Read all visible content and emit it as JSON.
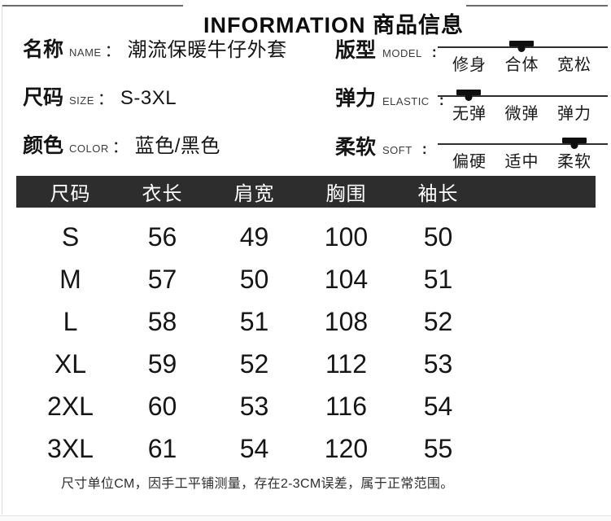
{
  "header": {
    "title": "INFORMATION 商品信息"
  },
  "punctuation": {
    "attr_colon": "：",
    "slider_colon": ":"
  },
  "attributes": [
    {
      "label_zh": "名称",
      "label_en": "NAME",
      "value": "潮流保暖牛仔外套"
    },
    {
      "label_zh": "尺码",
      "label_en": "SIZE",
      "value": "S-3XL"
    },
    {
      "label_zh": "颜色",
      "label_en": "COLOR",
      "value": "蓝色/黑色"
    }
  ],
  "sliders": [
    {
      "label_zh": "版型",
      "label_en": "MODEL",
      "options": [
        "修身",
        "合体",
        "宽松"
      ],
      "selected_index": 1
    },
    {
      "label_zh": "弹力",
      "label_en": "ELASTIC",
      "options": [
        "无弹",
        "微弹",
        "弹力"
      ],
      "selected_index": 0
    },
    {
      "label_zh": "柔软",
      "label_en": "SOFT",
      "options": [
        "偏硬",
        "适中",
        "柔软"
      ],
      "selected_index": 2
    }
  ],
  "size_table": {
    "headers": [
      "尺码",
      "衣长",
      "肩宽",
      "胸围",
      "袖长"
    ],
    "rows": [
      [
        "S",
        "56",
        "49",
        "100",
        "50"
      ],
      [
        "M",
        "57",
        "50",
        "104",
        "51"
      ],
      [
        "L",
        "58",
        "51",
        "108",
        "52"
      ],
      [
        "XL",
        "59",
        "52",
        "112",
        "53"
      ],
      [
        "2XL",
        "60",
        "53",
        "116",
        "54"
      ],
      [
        "3XL",
        "61",
        "54",
        "120",
        "55"
      ]
    ]
  },
  "footnote": "尺寸单位CM，因手工平铺测量，存在2-3CM误差，属于正常范围。",
  "colors": {
    "table_header_bg": "#2d2d2d",
    "table_header_text": "#ffffff",
    "divider_gray": "#6b6b6b",
    "text_black": "#141414"
  }
}
